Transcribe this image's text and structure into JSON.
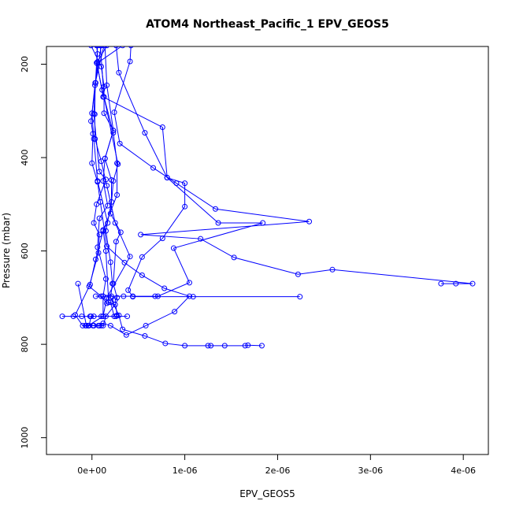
{
  "chart_data": {
    "type": "line",
    "title": "ATOM4 Northeast_Pacific_1 EPV_GEOS5",
    "xlabel": "EPV_GEOS5",
    "ylabel": "Pressure (mbar)",
    "xlim": [
      -4.9e-07,
      4.27e-06
    ],
    "ylim": [
      1036,
      162
    ],
    "y_inverted": true,
    "x_ticks": [
      0,
      1e-06,
      2e-06,
      3e-06,
      4e-06
    ],
    "x_tick_labels": [
      "0e+00",
      "1e-06",
      "2e-06",
      "3e-06",
      "4e-06"
    ],
    "y_ticks": [
      200,
      400,
      600,
      800,
      1000
    ],
    "y_tick_labels": [
      "200",
      "400",
      "600",
      "800",
      "1000"
    ],
    "color": "#0000ff",
    "marker": "open-circle",
    "grid": false,
    "series": [
      {
        "points": [
          [
            2.6e-07,
            160
          ],
          [
            2.9e-07,
            218
          ],
          [
            5.7e-07,
            347
          ],
          [
            8.1e-07,
            443
          ],
          [
            1.36e-06,
            540
          ],
          [
            1.84e-06,
            540
          ],
          [
            8.8e-07,
            594
          ],
          [
            1.05e-06,
            668
          ],
          [
            7.1e-07,
            697
          ],
          [
            6.8e-07,
            697
          ],
          [
            4.4e-07,
            697
          ],
          [
            3.4e-07,
            697
          ],
          [
            2.1e-07,
            697
          ],
          [
            1.2e-07,
            697
          ],
          [
            4e-08,
            697
          ]
        ]
      },
      {
        "points": [
          [
            4.2e-07,
            160
          ],
          [
            4.1e-07,
            194
          ],
          [
            2.4e-07,
            303
          ],
          [
            3e-07,
            370
          ],
          [
            6.6e-07,
            422
          ],
          [
            9.1e-07,
            455
          ],
          [
            1.33e-06,
            510
          ],
          [
            2.34e-06,
            537
          ],
          [
            5.25e-07,
            565
          ],
          [
            1.17e-06,
            574
          ],
          [
            1.53e-06,
            614
          ],
          [
            2.22e-06,
            650
          ],
          [
            2.59e-06,
            640
          ],
          [
            4.1e-06,
            670
          ],
          [
            3.92e-06,
            670
          ],
          [
            3.76e-06,
            670
          ]
        ]
      },
      {
        "points": [
          [
            3.3e-07,
            160
          ],
          [
            5.5e-08,
            198
          ],
          [
            1.2e-07,
            270
          ],
          [
            7.6e-07,
            335
          ],
          [
            8.1e-07,
            443
          ],
          [
            1e-06,
            455
          ],
          [
            1e-06,
            505
          ],
          [
            7.6e-07,
            573
          ],
          [
            5.4e-07,
            613
          ],
          [
            3.9e-07,
            684
          ],
          [
            4.4e-07,
            698
          ],
          [
            1.09e-06,
            698
          ],
          [
            2.24e-06,
            698
          ]
        ]
      },
      {
        "points": [
          [
            1.3e-07,
            160
          ],
          [
            3.5e-08,
            240
          ],
          [
            3e-08,
            307
          ],
          [
            3.3e-08,
            360
          ],
          [
            1e-07,
            408
          ],
          [
            1.6e-07,
            460
          ],
          [
            2.5e-07,
            540
          ],
          [
            4.1e-07,
            612
          ],
          [
            1.6e-07,
            700
          ],
          [
            1.2e-07,
            740
          ],
          [
            -3.2e-07,
            740
          ],
          [
            -2e-07,
            740
          ],
          [
            -1.1e-07,
            740
          ],
          [
            -2e-08,
            740
          ],
          [
            1e-07,
            740
          ],
          [
            2.6e-07,
            740
          ],
          [
            3.8e-07,
            740
          ]
        ]
      },
      {
        "points": [
          [
            -1e-08,
            160
          ],
          [
            1e-07,
            205
          ],
          [
            1.3e-07,
            248
          ],
          [
            1.3e-07,
            305
          ],
          [
            2.3e-07,
            342
          ],
          [
            1.4e-07,
            402
          ],
          [
            2.1e-07,
            448
          ],
          [
            2.1e-07,
            495
          ],
          [
            1.5e-07,
            557
          ],
          [
            2e-07,
            624
          ],
          [
            2.2e-07,
            670
          ],
          [
            2e-07,
            700
          ],
          [
            2.9e-07,
            738
          ],
          [
            3.3e-07,
            768
          ],
          [
            5.7e-07,
            782
          ],
          [
            7.9e-07,
            798
          ],
          [
            1e-06,
            803
          ],
          [
            1.25e-06,
            803
          ],
          [
            1.28e-06,
            803
          ],
          [
            1.43e-06,
            803
          ],
          [
            1.65e-06,
            803
          ],
          [
            1.68e-06,
            802
          ],
          [
            1.83e-06,
            803
          ]
        ]
      },
      {
        "points": [
          [
            5e-08,
            160
          ],
          [
            6e-08,
            178
          ],
          [
            5e-08,
            197
          ],
          [
            1.1e-07,
            255
          ],
          [
            2.3e-07,
            347
          ],
          [
            2.7e-07,
            412
          ],
          [
            2.7e-07,
            480
          ],
          [
            1.2e-07,
            557
          ],
          [
            4e-08,
            618
          ],
          [
            -2e-08,
            672
          ],
          [
            -1.8e-07,
            737
          ],
          [
            -1e-07,
            760
          ],
          [
            -7e-08,
            760
          ],
          [
            -4e-08,
            760
          ],
          [
            1e-08,
            760
          ]
        ]
      },
      {
        "points": [
          [
            1.6e-07,
            160
          ],
          [
            6e-08,
            195
          ],
          [
            4e-08,
            240
          ],
          [
            -1e-08,
            322
          ],
          [
            1e-08,
            349
          ],
          [
            0,
            412
          ],
          [
            6e-08,
            452
          ],
          [
            9e-08,
            495
          ],
          [
            1.6e-07,
            590
          ],
          [
            3.5e-07,
            625
          ],
          [
            5.4e-07,
            652
          ],
          [
            7.8e-07,
            680
          ],
          [
            1.05e-06,
            697
          ],
          [
            8.9e-07,
            730
          ],
          [
            5.8e-07,
            760
          ],
          [
            3.7e-07,
            780
          ],
          [
            2e-07,
            760
          ],
          [
            1.2e-07,
            755
          ],
          [
            8e-08,
            760
          ],
          [
            -3e-08,
            760
          ],
          [
            -1e-08,
            740
          ],
          [
            2e-08,
            740
          ]
        ]
      },
      {
        "points": [
          [
            1.4e-07,
            160
          ],
          [
            1.6e-07,
            245
          ],
          [
            2.3e-07,
            342
          ],
          [
            1.4e-07,
            402
          ],
          [
            1.2e-07,
            450
          ],
          [
            1.7e-07,
            503
          ],
          [
            8e-08,
            530
          ],
          [
            6e-08,
            592
          ],
          [
            1.5e-07,
            660
          ],
          [
            1.2e-07,
            697
          ],
          [
            1.2e-07,
            740
          ],
          [
            -4e-08,
            760
          ],
          [
            2e-08,
            760
          ],
          [
            7e-08,
            760
          ],
          [
            1e-07,
            760
          ]
        ]
      },
      {
        "points": [
          [
            1e-07,
            160
          ],
          [
            3.2e-08,
            245
          ],
          [
            0,
            305
          ],
          [
            2e-08,
            360
          ],
          [
            6e-08,
            450
          ],
          [
            1.7e-07,
            540
          ],
          [
            1.2e-07,
            555
          ],
          [
            1.5e-07,
            600
          ],
          [
            1.8e-07,
            710
          ],
          [
            2.5e-07,
            715
          ],
          [
            1.5e-07,
            740
          ],
          [
            1.2e-07,
            760
          ],
          [
            2e-08,
            760
          ],
          [
            -6e-08,
            760
          ],
          [
            -1.5e-07,
            670
          ]
        ]
      },
      {
        "points": [
          [
            9e-08,
            160
          ],
          [
            1.3e-07,
            270
          ],
          [
            2.8e-07,
            414
          ],
          [
            2.3e-07,
            450
          ],
          [
            2e-07,
            520
          ],
          [
            3.1e-07,
            560
          ],
          [
            2.6e-07,
            580
          ],
          [
            2.3e-07,
            670
          ],
          [
            2.7e-07,
            700
          ],
          [
            2.5e-07,
            705
          ],
          [
            2.7e-07,
            738
          ]
        ]
      },
      {
        "points": [
          [
            6e-08,
            160
          ],
          [
            2e-08,
            306
          ],
          [
            8e-08,
            430
          ],
          [
            1.5e-07,
            447
          ],
          [
            5e-08,
            500
          ],
          [
            2e-08,
            540
          ],
          [
            8e-08,
            565
          ],
          [
            7e-08,
            604
          ],
          [
            -3e-08,
            676
          ],
          [
            1e-07,
            697
          ],
          [
            1.6e-07,
            712
          ],
          [
            2e-07,
            710
          ],
          [
            2.4e-07,
            740
          ]
        ]
      }
    ]
  }
}
